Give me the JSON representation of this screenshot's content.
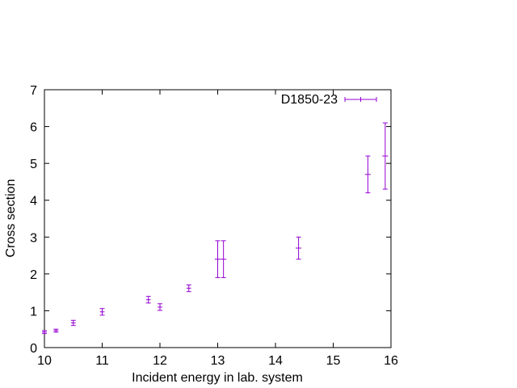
{
  "chart_data": {
    "type": "scatter",
    "title": "",
    "xlabel": "Incident energy in lab. system",
    "ylabel": "Cross section",
    "xlim": [
      10,
      16
    ],
    "ylim": [
      0,
      7
    ],
    "x_ticks": [
      10,
      11,
      12,
      13,
      14,
      15,
      16
    ],
    "y_ticks": [
      0,
      1,
      2,
      3,
      4,
      5,
      6,
      7
    ],
    "grid": false,
    "legend_position": "top-right",
    "series": [
      {
        "name": "D1850-23",
        "color": "#9400d3",
        "points": [
          {
            "x": 10.0,
            "y": 0.42,
            "yerr": 0.04,
            "xerr": 0.04
          },
          {
            "x": 10.2,
            "y": 0.46,
            "yerr": 0.04,
            "xerr": 0.04
          },
          {
            "x": 10.5,
            "y": 0.67,
            "yerr": 0.07,
            "xerr": 0.04
          },
          {
            "x": 11.0,
            "y": 0.97,
            "yerr": 0.09,
            "xerr": 0.04
          },
          {
            "x": 11.8,
            "y": 1.3,
            "yerr": 0.09,
            "xerr": 0.04
          },
          {
            "x": 12.0,
            "y": 1.1,
            "yerr": 0.09,
            "xerr": 0.04
          },
          {
            "x": 12.5,
            "y": 1.61,
            "yerr": 0.09,
            "xerr": 0.04
          },
          {
            "x": 13.0,
            "y": 2.4,
            "yerr": 0.5,
            "xerr": 0.05
          },
          {
            "x": 13.1,
            "y": 2.4,
            "yerr": 0.5,
            "xerr": 0.05
          },
          {
            "x": 14.4,
            "y": 2.7,
            "yerr": 0.3,
            "xerr": 0.05
          },
          {
            "x": 15.6,
            "y": 4.7,
            "yerr": 0.5,
            "xerr": 0.05
          },
          {
            "x": 15.9,
            "y": 5.2,
            "yerr": 0.9,
            "xerr": 0.05
          }
        ]
      }
    ]
  }
}
